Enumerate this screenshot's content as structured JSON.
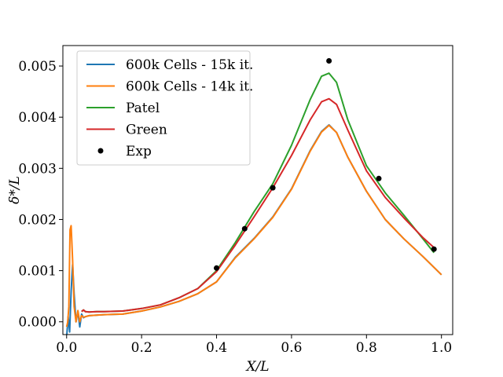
{
  "chart_data": {
    "type": "line",
    "title": "",
    "xlabel": "X/L",
    "ylabel": "δ*/L",
    "xlim": [
      -0.01,
      1.03
    ],
    "ylim": [
      -0.00025,
      0.0054
    ],
    "xticks": [
      0.0,
      0.2,
      0.4,
      0.6,
      0.8,
      1.0
    ],
    "xtick_labels": [
      "0.0",
      "0.2",
      "0.4",
      "0.6",
      "0.8",
      "1.0"
    ],
    "yticks": [
      0.0,
      0.001,
      0.002,
      0.003,
      0.004,
      0.005
    ],
    "ytick_labels": [
      "0.000",
      "0.001",
      "0.002",
      "0.003",
      "0.004",
      "0.005"
    ],
    "grid": false,
    "legend_position": "top-left",
    "series": [
      {
        "name": "600k Cells - 15k it.",
        "color": "#1f77b4",
        "x": [
          0.0,
          0.004,
          0.008,
          0.012,
          0.016,
          0.02,
          0.025,
          0.03,
          0.035,
          0.04,
          0.045,
          0.05,
          0.06,
          0.08,
          0.1,
          0.15,
          0.2,
          0.25,
          0.3,
          0.35,
          0.4,
          0.45,
          0.5,
          0.55,
          0.6,
          0.65,
          0.68,
          0.7,
          0.72,
          0.75,
          0.8,
          0.85,
          0.9,
          0.95,
          1.0
        ],
        "y": [
          -0.0003,
          0.0001,
          -0.0002,
          0.0006,
          0.00112,
          0.00055,
          0.0,
          0.0002,
          -0.0001,
          0.00015,
          8e-05,
          0.0001,
          0.00012,
          0.00013,
          0.00014,
          0.00015,
          0.00021,
          0.00029,
          0.0004,
          0.00055,
          0.00078,
          0.00126,
          0.00163,
          0.00205,
          0.0026,
          0.00335,
          0.00372,
          0.00385,
          0.0037,
          0.00322,
          0.00255,
          0.002,
          0.00162,
          0.00128,
          0.00092
        ]
      },
      {
        "name": "600k Cells - 14k it.",
        "color": "#ff7f0e",
        "x": [
          0.0,
          0.003,
          0.006,
          0.009,
          0.012,
          0.016,
          0.02,
          0.025,
          0.03,
          0.035,
          0.04,
          0.045,
          0.05,
          0.06,
          0.08,
          0.1,
          0.15,
          0.2,
          0.25,
          0.3,
          0.35,
          0.4,
          0.45,
          0.5,
          0.55,
          0.6,
          0.65,
          0.68,
          0.7,
          0.72,
          0.75,
          0.8,
          0.85,
          0.9,
          0.95,
          1.0
        ],
        "y": [
          -0.0001,
          0.0,
          0.0003,
          0.0018,
          0.00188,
          0.0012,
          0.0003,
          0.0,
          0.00022,
          0.0,
          0.00012,
          9e-05,
          0.0001,
          0.00012,
          0.00013,
          0.00014,
          0.00015,
          0.00021,
          0.00029,
          0.0004,
          0.00055,
          0.00078,
          0.00125,
          0.00162,
          0.00204,
          0.00259,
          0.00334,
          0.00371,
          0.00384,
          0.0037,
          0.00322,
          0.00255,
          0.002,
          0.00162,
          0.00128,
          0.00092
        ]
      },
      {
        "name": "Patel",
        "color": "#2ca02c",
        "x": [
          0.04,
          0.045,
          0.05,
          0.06,
          0.08,
          0.1,
          0.15,
          0.2,
          0.25,
          0.3,
          0.35,
          0.4,
          0.45,
          0.5,
          0.55,
          0.6,
          0.65,
          0.68,
          0.7,
          0.72,
          0.75,
          0.8,
          0.85,
          0.9,
          0.95,
          0.98
        ],
        "y": [
          0.0002,
          0.00023,
          0.0002,
          0.00019,
          0.0002,
          0.0002,
          0.00021,
          0.00026,
          0.00033,
          0.00047,
          0.00065,
          0.001,
          0.00155,
          0.00215,
          0.0027,
          0.00345,
          0.00435,
          0.0048,
          0.00486,
          0.00468,
          0.00395,
          0.00305,
          0.00252,
          0.00208,
          0.00163,
          0.00135
        ]
      },
      {
        "name": "Green",
        "color": "#d62728",
        "x": [
          0.04,
          0.045,
          0.05,
          0.06,
          0.08,
          0.1,
          0.15,
          0.2,
          0.25,
          0.3,
          0.35,
          0.4,
          0.45,
          0.5,
          0.55,
          0.6,
          0.65,
          0.68,
          0.7,
          0.72,
          0.75,
          0.8,
          0.85,
          0.9,
          0.95,
          0.98
        ],
        "y": [
          0.0002,
          0.00023,
          0.0002,
          0.00019,
          0.0002,
          0.0002,
          0.00021,
          0.00026,
          0.00033,
          0.00047,
          0.00065,
          0.00098,
          0.0015,
          0.00205,
          0.00262,
          0.00325,
          0.00395,
          0.0043,
          0.00436,
          0.00425,
          0.00375,
          0.00295,
          0.00243,
          0.00203,
          0.00165,
          0.00145
        ]
      }
    ],
    "points": {
      "name": "Exp",
      "color": "#000000",
      "x": [
        0.4,
        0.475,
        0.55,
        0.7,
        0.833,
        0.98
      ],
      "y": [
        0.00105,
        0.00182,
        0.00262,
        0.0051,
        0.0028,
        0.00142
      ]
    }
  }
}
